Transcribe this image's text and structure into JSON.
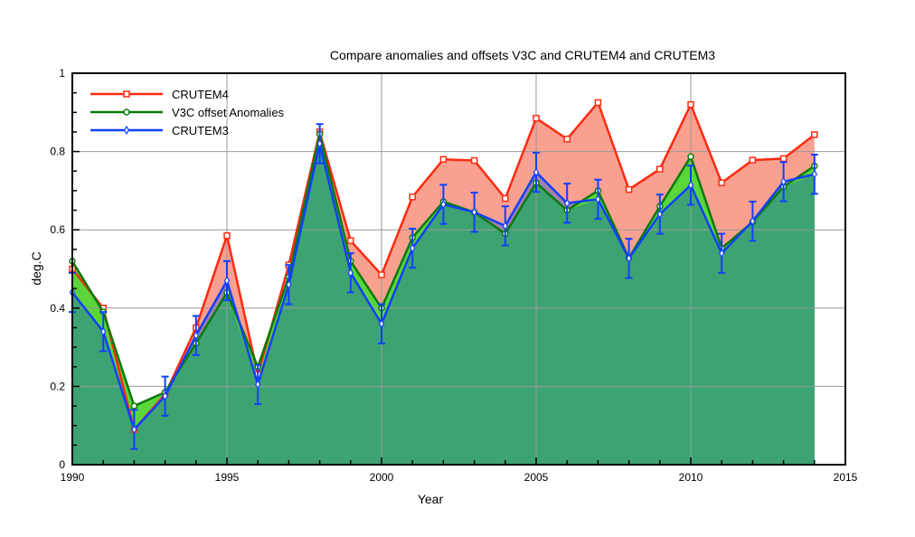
{
  "chart_data": {
    "type": "line",
    "title": "Compare anomalies and offsets V3C  and CRUTEM4 and CRUTEM3",
    "xlabel": "Year",
    "ylabel": "deg.C",
    "xlim": [
      1990,
      2015
    ],
    "ylim": [
      0,
      1
    ],
    "xticks": [
      "1990",
      "1995",
      "2000",
      "2005",
      "2010",
      "2015"
    ],
    "yticks": [
      "0",
      "0.2",
      "0.4",
      "0.6",
      "0.8",
      "1"
    ],
    "grid": true,
    "legend_position": "top-left",
    "x": [
      1990,
      1991,
      1992,
      1993,
      1994,
      1995,
      1996,
      1997,
      1998,
      1999,
      2000,
      2001,
      2002,
      2003,
      2004,
      2005,
      2006,
      2007,
      2008,
      2009,
      2010,
      2011,
      2012,
      2013,
      2014
    ],
    "series": [
      {
        "name": "CRUTEM4",
        "color": "#ff2a10",
        "fill": "#f9a090",
        "marker": "square",
        "values": [
          0.5,
          0.4,
          0.09,
          0.18,
          0.35,
          0.585,
          0.23,
          0.51,
          0.85,
          0.572,
          0.485,
          0.684,
          0.78,
          0.777,
          0.68,
          0.885,
          0.832,
          0.925,
          0.703,
          0.755,
          0.92,
          0.72,
          0.778,
          0.782,
          0.843
        ]
      },
      {
        "name": "V3C offset Anomalies",
        "color": "#0a7a0a",
        "fill": "#5ad63a",
        "marker": "circle",
        "values": [
          0.52,
          0.39,
          0.15,
          0.185,
          0.31,
          0.44,
          0.25,
          0.48,
          0.845,
          0.52,
          0.4,
          0.58,
          0.672,
          0.645,
          0.59,
          0.72,
          0.65,
          0.7,
          0.528,
          0.66,
          0.787,
          0.553,
          0.62,
          0.71,
          0.763
        ]
      },
      {
        "name": "CRUTEM3",
        "color": "#1040ff",
        "fill": "#a080b0",
        "marker": "diamond",
        "values": [
          0.44,
          0.34,
          0.09,
          0.175,
          0.33,
          0.47,
          0.205,
          0.46,
          0.82,
          0.49,
          0.36,
          0.553,
          0.665,
          0.645,
          0.61,
          0.747,
          0.668,
          0.678,
          0.527,
          0.64,
          0.714,
          0.54,
          0.622,
          0.723,
          0.742
        ],
        "error": [
          0.05,
          0.05,
          0.05,
          0.05,
          0.05,
          0.05,
          0.05,
          0.05,
          0.05,
          0.05,
          0.05,
          0.05,
          0.05,
          0.05,
          0.05,
          0.05,
          0.05,
          0.05,
          0.05,
          0.05,
          0.05,
          0.05,
          0.05,
          0.05,
          0.05
        ]
      }
    ],
    "overlap_fill": "#3da373"
  }
}
